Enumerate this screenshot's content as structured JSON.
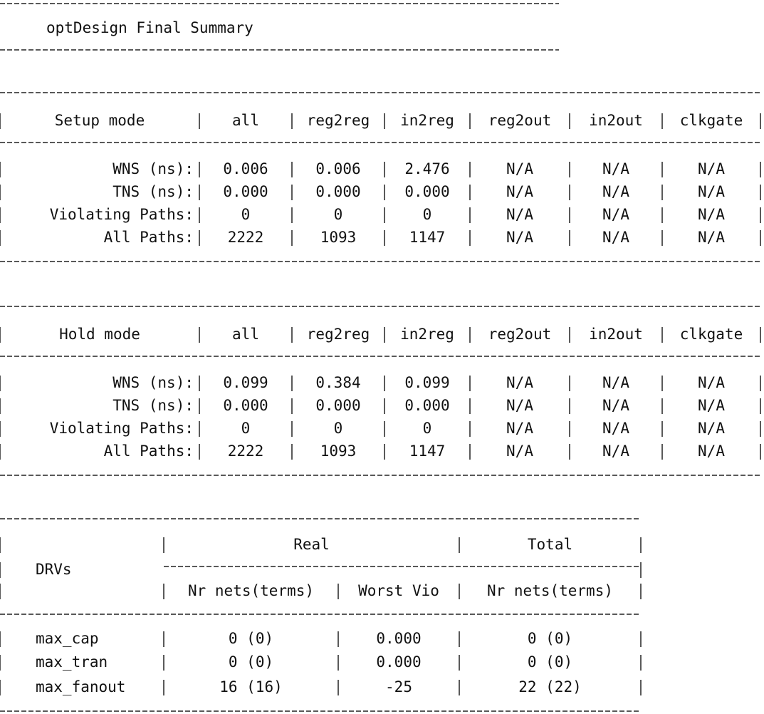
{
  "title": "optDesign Final Summary",
  "setup": {
    "header": [
      "Setup mode",
      "all",
      "reg2reg",
      "in2reg",
      "reg2out",
      "in2out",
      "clkgate"
    ],
    "rows": [
      [
        "WNS (ns):",
        "0.006",
        "0.006",
        "2.476",
        "N/A",
        "N/A",
        "N/A"
      ],
      [
        "TNS (ns):",
        "0.000",
        "0.000",
        "0.000",
        "N/A",
        "N/A",
        "N/A"
      ],
      [
        "Violating Paths:",
        "0",
        "0",
        "0",
        "N/A",
        "N/A",
        "N/A"
      ],
      [
        "All Paths:",
        "2222",
        "1093",
        "1147",
        "N/A",
        "N/A",
        "N/A"
      ]
    ]
  },
  "hold": {
    "header": [
      "Hold mode",
      "all",
      "reg2reg",
      "in2reg",
      "reg2out",
      "in2out",
      "clkgate"
    ],
    "rows": [
      [
        "WNS (ns):",
        "0.099",
        "0.384",
        "0.099",
        "N/A",
        "N/A",
        "N/A"
      ],
      [
        "TNS (ns):",
        "0.000",
        "0.000",
        "0.000",
        "N/A",
        "N/A",
        "N/A"
      ],
      [
        "Violating Paths:",
        "0",
        "0",
        "0",
        "N/A",
        "N/A",
        "N/A"
      ],
      [
        "All Paths:",
        "2222",
        "1093",
        "1147",
        "N/A",
        "N/A",
        "N/A"
      ]
    ]
  },
  "drv": {
    "header": "DRVs",
    "groups": [
      "Real",
      "Total"
    ],
    "subheader": [
      "Nr nets(terms)",
      "Worst Vio",
      "Nr nets(terms)"
    ],
    "rows": [
      [
        "max_cap",
        "0 (0)",
        "0.000",
        "0 (0)"
      ],
      [
        "max_tran",
        "0 (0)",
        "0.000",
        "0 (0)"
      ],
      [
        "max_fanout",
        "16 (16)",
        "-25",
        "22 (22)"
      ]
    ]
  }
}
